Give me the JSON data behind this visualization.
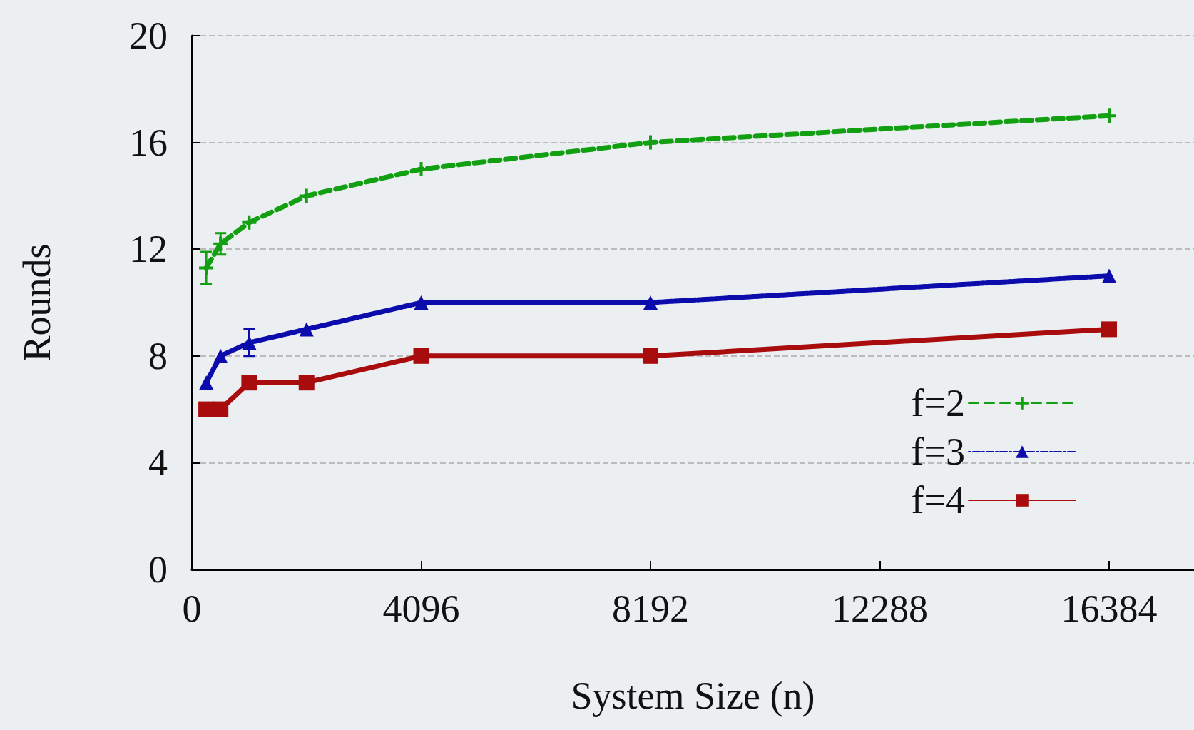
{
  "chart_data": {
    "type": "line",
    "xlabel": "System Size (n)",
    "ylabel": "Rounds",
    "x": [
      256,
      512,
      1024,
      2048,
      4096,
      8192,
      16384
    ],
    "xlim": [
      0,
      17900
    ],
    "xticks": [
      0,
      4096,
      8192,
      12288,
      16384
    ],
    "ylim": [
      0,
      20
    ],
    "yticks": [
      0,
      4,
      8,
      12,
      16,
      20
    ],
    "grid": "y",
    "legend": "bottom right",
    "series": [
      {
        "name": "f=2",
        "color": "#12a012",
        "marker": "cross",
        "line_style": "dashed",
        "values": [
          11.3,
          12.2,
          13,
          14,
          15,
          16,
          17
        ],
        "errors": [
          0.6,
          0.4,
          null,
          null,
          null,
          null,
          null
        ]
      },
      {
        "name": "f=3",
        "color": "#0c0cac",
        "marker": "triangle",
        "line_style": "dotted",
        "values": [
          7,
          8,
          8.5,
          9,
          10,
          10,
          11
        ],
        "errors": [
          null,
          null,
          0.5,
          null,
          null,
          null,
          null
        ]
      },
      {
        "name": "f=4",
        "color": "#a80c0c",
        "marker": "square",
        "line_style": "solid",
        "values": [
          6,
          6,
          7,
          7,
          8,
          8,
          9
        ]
      }
    ]
  }
}
